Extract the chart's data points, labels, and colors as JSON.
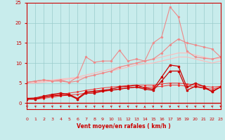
{
  "x": [
    0,
    1,
    2,
    3,
    4,
    5,
    6,
    7,
    8,
    9,
    10,
    11,
    12,
    13,
    14,
    15,
    16,
    17,
    18,
    19,
    20,
    21,
    22,
    23
  ],
  "line_dark1": [
    1.2,
    1.3,
    1.8,
    2.2,
    2.5,
    2.2,
    1.2,
    2.8,
    3.0,
    3.2,
    3.5,
    4.0,
    4.2,
    4.5,
    3.8,
    3.5,
    6.5,
    9.5,
    9.2,
    4.0,
    5.0,
    4.2,
    2.8,
    4.0
  ],
  "line_dark2": [
    1.0,
    1.0,
    1.5,
    1.8,
    2.0,
    2.0,
    1.0,
    2.5,
    2.5,
    3.0,
    3.2,
    3.5,
    3.8,
    4.0,
    3.5,
    3.2,
    5.5,
    8.0,
    8.0,
    3.2,
    4.2,
    3.8,
    3.0,
    4.0
  ],
  "line_med1": [
    1.0,
    1.2,
    1.5,
    2.0,
    2.2,
    2.5,
    2.8,
    3.2,
    3.5,
    3.8,
    4.0,
    4.2,
    4.4,
    4.5,
    4.5,
    4.5,
    4.8,
    5.0,
    5.0,
    4.8,
    4.5,
    4.2,
    4.0,
    4.2
  ],
  "line_med2": [
    1.0,
    1.0,
    1.2,
    1.5,
    1.8,
    2.0,
    2.2,
    2.5,
    2.8,
    3.0,
    3.2,
    3.5,
    3.8,
    4.0,
    4.0,
    4.0,
    4.2,
    4.5,
    4.5,
    4.2,
    4.0,
    3.8,
    3.5,
    4.0
  ],
  "line_pink_spiky": [
    5.2,
    5.5,
    5.8,
    5.5,
    5.5,
    5.2,
    6.5,
    11.5,
    10.2,
    10.5,
    10.5,
    13.2,
    10.5,
    11.0,
    10.5,
    15.0,
    16.5,
    24.0,
    21.5,
    13.0,
    11.5,
    11.2,
    11.0,
    11.5
  ],
  "line_pink_smooth": [
    5.2,
    5.5,
    5.8,
    5.5,
    5.8,
    5.2,
    5.5,
    6.5,
    7.0,
    7.5,
    8.0,
    9.0,
    9.5,
    10.0,
    10.5,
    11.0,
    12.5,
    14.5,
    16.0,
    15.0,
    14.5,
    14.0,
    13.5,
    11.5
  ],
  "line_faint1": [
    5.0,
    5.2,
    5.5,
    5.8,
    6.0,
    6.2,
    6.5,
    7.0,
    7.5,
    8.0,
    8.5,
    9.0,
    9.5,
    10.0,
    10.5,
    11.0,
    11.5,
    12.0,
    12.5,
    12.5,
    12.0,
    11.5,
    11.0,
    11.2
  ],
  "line_faint2": [
    5.0,
    5.0,
    5.2,
    5.5,
    5.8,
    6.0,
    6.2,
    6.5,
    7.0,
    7.5,
    8.0,
    8.5,
    9.0,
    9.5,
    9.8,
    10.0,
    10.5,
    11.0,
    11.5,
    11.5,
    11.0,
    10.5,
    10.0,
    10.5
  ],
  "wind_angles": [
    45,
    45,
    45,
    45,
    45,
    45,
    45,
    45,
    45,
    45,
    45,
    45,
    45,
    45,
    0,
    -45,
    -45,
    -45,
    45,
    45,
    45,
    45,
    45,
    45
  ],
  "xlim": [
    0,
    23
  ],
  "ylim": [
    -1.5,
    25
  ],
  "yticks": [
    0,
    5,
    10,
    15,
    20,
    25
  ],
  "xticks": [
    0,
    1,
    2,
    3,
    4,
    5,
    6,
    7,
    8,
    9,
    10,
    11,
    12,
    13,
    14,
    15,
    16,
    17,
    18,
    19,
    20,
    21,
    22,
    23
  ],
  "xlabel": "Vent moyen/en rafales ( km/h )",
  "bg_color": "#c8ecec",
  "grid_color": "#99cccc",
  "color_dark_red": "#cc0000",
  "color_med_red": "#ee3333",
  "color_light_red": "#ee8888",
  "color_faint_red": "#ffbbbb"
}
